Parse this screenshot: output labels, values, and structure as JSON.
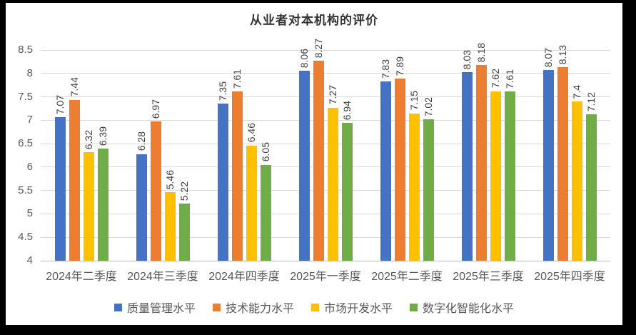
{
  "chart_data": {
    "type": "bar",
    "title": "从业者对本机构的评价",
    "categories": [
      "2024年二季度",
      "2024年三季度",
      "2024年四季度",
      "2025年一季度",
      "2025年二季度",
      "2025年三季度",
      "2025年四季度"
    ],
    "series": [
      {
        "name": "质量管理水平",
        "color": "#4472C4",
        "values": [
          7.07,
          6.28,
          7.35,
          8.06,
          7.83,
          8.03,
          8.07
        ]
      },
      {
        "name": "技术能力水平",
        "color": "#ED7D31",
        "values": [
          7.44,
          6.97,
          7.61,
          8.27,
          7.89,
          8.18,
          8.13
        ]
      },
      {
        "name": "市场开发水平",
        "color": "#FFC000",
        "values": [
          6.32,
          5.46,
          6.46,
          7.27,
          7.15,
          7.62,
          7.4
        ]
      },
      {
        "name": "数字化智能化水平",
        "color": "#70AD47",
        "values": [
          6.39,
          5.22,
          6.05,
          6.94,
          7.02,
          7.61,
          7.12
        ]
      }
    ],
    "y_axis": {
      "min": 4,
      "max": 8.5,
      "step": 0.5,
      "tick_labels": [
        "4",
        "4.5",
        "5",
        "5.5",
        "6",
        "6.5",
        "7",
        "7.5",
        "8",
        "8.5"
      ]
    },
    "data_labels": {
      "shown": true,
      "rotation": "vertical-bottom-to-top"
    },
    "legend_position": "bottom",
    "grid": true,
    "colors": {
      "grid_line": "#d9d9d9",
      "axis_line": "#bfbfbf",
      "axis_text": "#595959",
      "data_label_text": "#404040",
      "title_text": "#333333",
      "background": "#ffffff",
      "frame": "#000000"
    }
  }
}
